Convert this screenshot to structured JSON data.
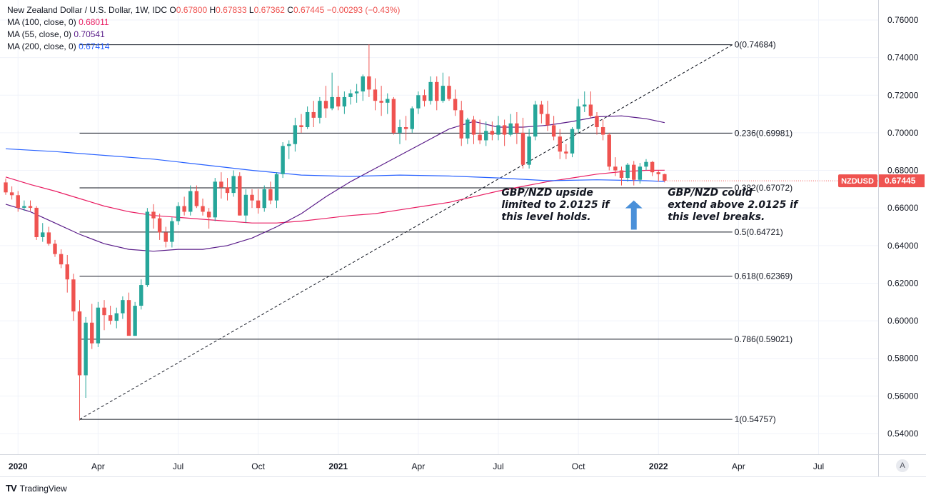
{
  "legend": {
    "title": "New Zealand Dollar / U.S. Dollar, 1W, IDC",
    "ohlc": [
      {
        "label": "O",
        "value": "0.67800"
      },
      {
        "label": "H",
        "value": "0.67833"
      },
      {
        "label": "L",
        "value": "0.67362"
      },
      {
        "label": "C",
        "value": "0.67445"
      }
    ],
    "change": "−0.00293 (−0.43%)",
    "indicators": [
      {
        "label": "MA (100, close, 0)",
        "value": "0.68011",
        "color": "#e91e63"
      },
      {
        "label": "MA (55, close, 0)",
        "value": "0.70541",
        "color": "#5b1e8a"
      },
      {
        "label": "MA (200, close, 0)",
        "value": "0.67414",
        "color": "#2962ff"
      }
    ]
  },
  "footer": {
    "brand": "TradingView",
    "auto_label": "A"
  },
  "chart_data": {
    "type": "candlestick",
    "symbol_badge": "NZDUSD",
    "last_price": "0.67445",
    "ylim": [
      0.536,
      0.766
    ],
    "y_ticks": [
      "0.76000",
      "0.74000",
      "0.72000",
      "0.70000",
      "0.68000",
      "0.66000",
      "0.64000",
      "0.62000",
      "0.60000",
      "0.58000",
      "0.56000",
      "0.54000"
    ],
    "x_ticks": [
      {
        "label": "2020",
        "week": 2,
        "bold": true
      },
      {
        "label": "Apr",
        "week": 15
      },
      {
        "label": "Jul",
        "week": 28
      },
      {
        "label": "Oct",
        "week": 41
      },
      {
        "label": "2021",
        "week": 54,
        "bold": true
      },
      {
        "label": "Apr",
        "week": 67
      },
      {
        "label": "Jul",
        "week": 80
      },
      {
        "label": "Oct",
        "week": 93
      },
      {
        "label": "2022",
        "week": 106,
        "bold": true
      },
      {
        "label": "Apr",
        "week": 119
      },
      {
        "label": "Jul",
        "week": 132
      }
    ],
    "up_color": "#26a69a",
    "down_color": "#ef5350",
    "candles": [
      [
        0.6736,
        0.6757,
        0.667,
        0.6683
      ],
      [
        0.6683,
        0.6715,
        0.6645,
        0.6668
      ],
      [
        0.6668,
        0.669,
        0.658,
        0.6601
      ],
      [
        0.6601,
        0.664,
        0.6585,
        0.661
      ],
      [
        0.661,
        0.664,
        0.6585,
        0.6601
      ],
      [
        0.6601,
        0.661,
        0.643,
        0.6445
      ],
      [
        0.6445,
        0.652,
        0.642,
        0.647
      ],
      [
        0.647,
        0.65,
        0.64,
        0.641
      ],
      [
        0.641,
        0.643,
        0.634,
        0.6355
      ],
      [
        0.6355,
        0.638,
        0.628,
        0.63
      ],
      [
        0.63,
        0.635,
        0.615,
        0.622
      ],
      [
        0.622,
        0.625,
        0.6,
        0.605
      ],
      [
        0.605,
        0.611,
        0.547,
        0.571
      ],
      [
        0.571,
        0.602,
        0.559,
        0.599
      ],
      [
        0.599,
        0.609,
        0.585,
        0.588
      ],
      [
        0.588,
        0.61,
        0.586,
        0.607
      ],
      [
        0.607,
        0.611,
        0.595,
        0.603
      ],
      [
        0.603,
        0.608,
        0.598,
        0.6
      ],
      [
        0.6,
        0.607,
        0.596,
        0.604
      ],
      [
        0.604,
        0.613,
        0.601,
        0.611
      ],
      [
        0.611,
        0.615,
        0.594,
        0.592
      ],
      [
        0.592,
        0.61,
        0.592,
        0.608
      ],
      [
        0.608,
        0.622,
        0.606,
        0.619
      ],
      [
        0.619,
        0.66,
        0.618,
        0.658
      ],
      [
        0.658,
        0.662,
        0.649,
        0.6545
      ],
      [
        0.6545,
        0.657,
        0.643,
        0.647
      ],
      [
        0.647,
        0.65,
        0.639,
        0.642
      ],
      [
        0.642,
        0.655,
        0.639,
        0.653
      ],
      [
        0.653,
        0.663,
        0.651,
        0.661
      ],
      [
        0.661,
        0.666,
        0.656,
        0.658
      ],
      [
        0.658,
        0.672,
        0.656,
        0.669
      ],
      [
        0.669,
        0.672,
        0.66,
        0.661
      ],
      [
        0.661,
        0.665,
        0.656,
        0.658
      ],
      [
        0.658,
        0.66,
        0.649,
        0.655
      ],
      [
        0.655,
        0.676,
        0.653,
        0.674
      ],
      [
        0.674,
        0.679,
        0.665,
        0.671
      ],
      [
        0.671,
        0.676,
        0.664,
        0.668
      ],
      [
        0.668,
        0.68,
        0.666,
        0.677
      ],
      [
        0.677,
        0.679,
        0.656,
        0.656
      ],
      [
        0.656,
        0.67,
        0.652,
        0.667
      ],
      [
        0.667,
        0.67,
        0.66,
        0.664
      ],
      [
        0.664,
        0.67,
        0.657,
        0.66
      ],
      [
        0.66,
        0.672,
        0.658,
        0.67
      ],
      [
        0.67,
        0.674,
        0.662,
        0.664
      ],
      [
        0.664,
        0.679,
        0.66,
        0.678
      ],
      [
        0.678,
        0.695,
        0.676,
        0.693
      ],
      [
        0.693,
        0.696,
        0.686,
        0.694
      ],
      [
        0.694,
        0.708,
        0.69,
        0.704
      ],
      [
        0.704,
        0.71,
        0.7,
        0.703
      ],
      [
        0.703,
        0.714,
        0.702,
        0.711
      ],
      [
        0.711,
        0.717,
        0.703,
        0.708
      ],
      [
        0.708,
        0.719,
        0.705,
        0.717
      ],
      [
        0.717,
        0.725,
        0.708,
        0.713
      ],
      [
        0.713,
        0.732,
        0.712,
        0.719
      ],
      [
        0.719,
        0.725,
        0.712,
        0.714
      ],
      [
        0.714,
        0.722,
        0.71,
        0.719
      ],
      [
        0.719,
        0.723,
        0.715,
        0.721
      ],
      [
        0.721,
        0.726,
        0.716,
        0.722
      ],
      [
        0.722,
        0.731,
        0.717,
        0.73
      ],
      [
        0.73,
        0.747,
        0.719,
        0.723
      ],
      [
        0.723,
        0.729,
        0.712,
        0.717
      ],
      [
        0.717,
        0.725,
        0.709,
        0.716
      ],
      [
        0.716,
        0.721,
        0.71,
        0.718
      ],
      [
        0.718,
        0.719,
        0.699,
        0.7
      ],
      [
        0.7,
        0.707,
        0.694,
        0.703
      ],
      [
        0.703,
        0.709,
        0.696,
        0.702
      ],
      [
        0.702,
        0.714,
        0.7,
        0.713
      ],
      [
        0.713,
        0.722,
        0.71,
        0.72
      ],
      [
        0.72,
        0.723,
        0.714,
        0.717
      ],
      [
        0.717,
        0.73,
        0.715,
        0.727
      ],
      [
        0.727,
        0.73,
        0.712,
        0.717
      ],
      [
        0.717,
        0.732,
        0.716,
        0.725
      ],
      [
        0.725,
        0.73,
        0.717,
        0.718
      ],
      [
        0.718,
        0.723,
        0.709,
        0.712
      ],
      [
        0.712,
        0.717,
        0.693,
        0.697
      ],
      [
        0.697,
        0.708,
        0.694,
        0.707
      ],
      [
        0.707,
        0.709,
        0.694,
        0.699
      ],
      [
        0.699,
        0.707,
        0.694,
        0.696
      ],
      [
        0.696,
        0.706,
        0.693,
        0.701
      ],
      [
        0.701,
        0.706,
        0.696,
        0.699
      ],
      [
        0.699,
        0.709,
        0.696,
        0.704
      ],
      [
        0.704,
        0.707,
        0.693,
        0.699
      ],
      [
        0.699,
        0.71,
        0.698,
        0.705
      ],
      [
        0.705,
        0.711,
        0.694,
        0.7
      ],
      [
        0.7,
        0.708,
        0.681,
        0.683
      ],
      [
        0.683,
        0.702,
        0.681,
        0.698
      ],
      [
        0.698,
        0.717,
        0.696,
        0.715
      ],
      [
        0.715,
        0.717,
        0.705,
        0.71
      ],
      [
        0.71,
        0.717,
        0.701,
        0.704
      ],
      [
        0.704,
        0.709,
        0.696,
        0.698
      ],
      [
        0.698,
        0.702,
        0.686,
        0.69
      ],
      [
        0.69,
        0.694,
        0.686,
        0.689
      ],
      [
        0.689,
        0.703,
        0.687,
        0.702
      ],
      [
        0.702,
        0.718,
        0.7,
        0.714
      ],
      [
        0.714,
        0.722,
        0.711,
        0.715
      ],
      [
        0.715,
        0.722,
        0.708,
        0.709
      ],
      [
        0.709,
        0.711,
        0.699,
        0.703
      ],
      [
        0.703,
        0.707,
        0.696,
        0.699
      ],
      [
        0.699,
        0.7,
        0.68,
        0.682
      ],
      [
        0.682,
        0.687,
        0.677,
        0.68
      ],
      [
        0.68,
        0.682,
        0.672,
        0.676
      ],
      [
        0.676,
        0.684,
        0.674,
        0.683
      ],
      [
        0.683,
        0.685,
        0.672,
        0.675
      ],
      [
        0.675,
        0.684,
        0.673,
        0.682
      ],
      [
        0.682,
        0.686,
        0.68,
        0.6845
      ],
      [
        0.6845,
        0.685,
        0.677,
        0.679
      ],
      [
        0.679,
        0.68,
        0.674,
        0.678
      ],
      [
        0.678,
        0.6783,
        0.6736,
        0.6745
      ]
    ],
    "moving_averages": [
      {
        "name": "MA (100, close, 0)",
        "color": "#e91e63",
        "points": [
          [
            0,
            0.6765
          ],
          [
            4,
            0.6725
          ],
          [
            8,
            0.669
          ],
          [
            12,
            0.665
          ],
          [
            16,
            0.661
          ],
          [
            20,
            0.658
          ],
          [
            24,
            0.656
          ],
          [
            28,
            0.655
          ],
          [
            32,
            0.654
          ],
          [
            36,
            0.653
          ],
          [
            40,
            0.652
          ],
          [
            44,
            0.652
          ],
          [
            48,
            0.653
          ],
          [
            52,
            0.6545
          ],
          [
            56,
            0.656
          ],
          [
            60,
            0.657
          ],
          [
            64,
            0.659
          ],
          [
            68,
            0.661
          ],
          [
            72,
            0.663
          ],
          [
            76,
            0.666
          ],
          [
            80,
            0.669
          ],
          [
            84,
            0.6715
          ],
          [
            88,
            0.674
          ],
          [
            92,
            0.676
          ],
          [
            96,
            0.678
          ],
          [
            100,
            0.6793
          ],
          [
            104,
            0.68
          ],
          [
            107,
            0.6801
          ]
        ]
      },
      {
        "name": "MA (55, close, 0)",
        "color": "#5b1e8a",
        "points": [
          [
            0,
            0.662
          ],
          [
            4,
            0.658
          ],
          [
            8,
            0.652
          ],
          [
            12,
            0.646
          ],
          [
            16,
            0.641
          ],
          [
            20,
            0.638
          ],
          [
            24,
            0.637
          ],
          [
            28,
            0.638
          ],
          [
            32,
            0.638
          ],
          [
            36,
            0.64
          ],
          [
            40,
            0.644
          ],
          [
            44,
            0.65
          ],
          [
            48,
            0.657
          ],
          [
            52,
            0.666
          ],
          [
            56,
            0.674
          ],
          [
            60,
            0.681
          ],
          [
            64,
            0.688
          ],
          [
            68,
            0.695
          ],
          [
            72,
            0.702
          ],
          [
            76,
            0.706
          ],
          [
            80,
            0.703
          ],
          [
            84,
            0.703
          ],
          [
            88,
            0.704
          ],
          [
            92,
            0.706
          ],
          [
            96,
            0.7085
          ],
          [
            100,
            0.709
          ],
          [
            104,
            0.7075
          ],
          [
            107,
            0.7054
          ]
        ]
      },
      {
        "name": "MA (200, close, 0)",
        "color": "#2962ff",
        "points": [
          [
            0,
            0.6915
          ],
          [
            8,
            0.69
          ],
          [
            16,
            0.688
          ],
          [
            24,
            0.686
          ],
          [
            32,
            0.683
          ],
          [
            40,
            0.68
          ],
          [
            48,
            0.6775
          ],
          [
            56,
            0.6768
          ],
          [
            64,
            0.6775
          ],
          [
            72,
            0.677
          ],
          [
            80,
            0.676
          ],
          [
            88,
            0.6745
          ],
          [
            96,
            0.675
          ],
          [
            104,
            0.6745
          ],
          [
            107,
            0.6741
          ]
        ]
      }
    ],
    "fibonacci": [
      {
        "label": "0(0.74684)",
        "value": 0.74684
      },
      {
        "label": "0.236(0.69981)",
        "value": 0.69981
      },
      {
        "label": "0.382(0.67072)",
        "value": 0.67072
      },
      {
        "label": "0.5(0.64721)",
        "value": 0.64721
      },
      {
        "label": "0.618(0.62369)",
        "value": 0.62369
      },
      {
        "label": "0.786(0.59021)",
        "value": 0.59021
      },
      {
        "label": "1(0.54757)",
        "value": 0.54757
      }
    ],
    "trendline": {
      "from": [
        12,
        0.54757
      ],
      "to": [
        118,
        0.74684
      ]
    },
    "annotations": [
      {
        "lines": [
          "GBP/NZD upside",
          "limited to 2.0125 if",
          "this level holds."
        ],
        "week": 80.5,
        "value": 0.6665
      },
      {
        "lines": [
          "GBP/NZD could",
          "extend above 2.0125 if",
          "this level breaks."
        ],
        "week": 107.5,
        "value": 0.6665
      }
    ],
    "arrow": {
      "week": 102,
      "value_base": 0.6485,
      "value_tip": 0.664,
      "color": "#4a90d9",
      "direction": "up"
    }
  }
}
